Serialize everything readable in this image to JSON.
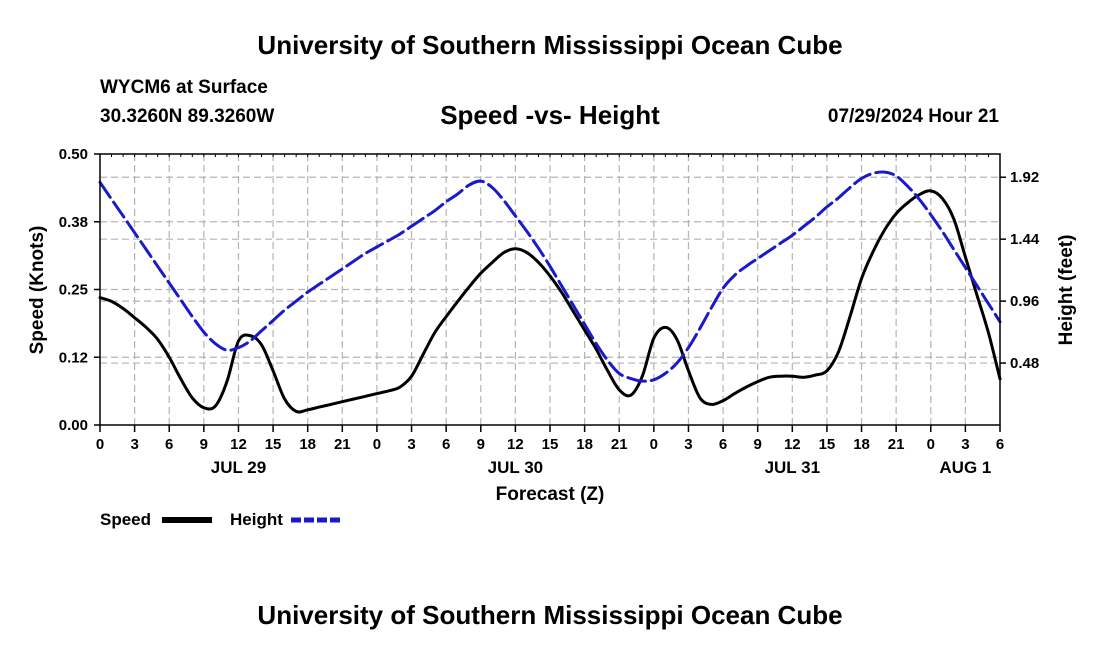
{
  "header": {
    "title": "University of Southern Mississippi Ocean Cube",
    "station": "WYCM6 at Surface",
    "coordinates": "30.3260N  89.3260W",
    "subtitle": "Speed -vs- Height",
    "datetime": "07/29/2024 Hour 21"
  },
  "footer": {
    "title": "University of Southern Mississippi Ocean Cube"
  },
  "colors": {
    "speed": "#000000",
    "height": "#1a1acc",
    "grid": "#b4b4b4"
  },
  "chart_data": {
    "type": "line",
    "xlabel": "Forecast (Z)",
    "ylabel_left": "Speed (Knots)",
    "ylabel_right": "Height (feet)",
    "x_range_hours": [
      0,
      78
    ],
    "ylim_left": [
      0,
      0.5
    ],
    "ylim_right": [
      0,
      2.1
    ],
    "x_tick_labels": [
      "0",
      "3",
      "6",
      "9",
      "12",
      "15",
      "18",
      "21",
      "0",
      "3",
      "6",
      "9",
      "12",
      "15",
      "18",
      "21",
      "0",
      "3",
      "6",
      "9",
      "12",
      "15",
      "18",
      "21",
      "0",
      "3",
      "6"
    ],
    "y_left_ticks": [
      {
        "value": 0.0,
        "label": "0.00"
      },
      {
        "value": 0.125,
        "label": "0.12"
      },
      {
        "value": 0.25,
        "label": "0.25"
      },
      {
        "value": 0.375,
        "label": "0.38"
      },
      {
        "value": 0.5,
        "label": "0.50"
      }
    ],
    "y_right_ticks": [
      {
        "value": 0.48,
        "label": "0.48"
      },
      {
        "value": 0.96,
        "label": "0.96"
      },
      {
        "value": 1.44,
        "label": "1.44"
      },
      {
        "value": 1.92,
        "label": "1.92"
      }
    ],
    "date_labels": [
      {
        "hour": 12,
        "label": "JUL 29"
      },
      {
        "hour": 36,
        "label": "JUL 30"
      },
      {
        "hour": 60,
        "label": "JUL 31"
      },
      {
        "hour": 75,
        "label": "AUG 1"
      }
    ],
    "legend": [
      "Speed",
      "Height"
    ],
    "series": [
      {
        "name": "Speed",
        "axis": "left",
        "style": "solid",
        "x": [
          0,
          1,
          2,
          3,
          4,
          5,
          6,
          7,
          8,
          9,
          10,
          11,
          12,
          13,
          14,
          15,
          16,
          17,
          18,
          19,
          20,
          21,
          22,
          23,
          24,
          25,
          26,
          27,
          28,
          29,
          30,
          31,
          32,
          33,
          34,
          35,
          36,
          37,
          38,
          39,
          40,
          41,
          42,
          43,
          44,
          45,
          46,
          47,
          48,
          49,
          50,
          51,
          52,
          53,
          54,
          55,
          56,
          57,
          58,
          59,
          60,
          61,
          62,
          63,
          64,
          65,
          66,
          67,
          68,
          69,
          70,
          71,
          72,
          73,
          74,
          75,
          76,
          77,
          78
        ],
        "values": [
          0.235,
          0.228,
          0.215,
          0.198,
          0.18,
          0.158,
          0.125,
          0.085,
          0.05,
          0.032,
          0.035,
          0.08,
          0.155,
          0.165,
          0.148,
          0.1,
          0.048,
          0.025,
          0.028,
          0.033,
          0.038,
          0.043,
          0.048,
          0.053,
          0.058,
          0.063,
          0.07,
          0.09,
          0.13,
          0.17,
          0.2,
          0.228,
          0.255,
          0.28,
          0.3,
          0.318,
          0.325,
          0.318,
          0.3,
          0.275,
          0.245,
          0.21,
          0.175,
          0.14,
          0.1,
          0.065,
          0.055,
          0.09,
          0.16,
          0.18,
          0.158,
          0.1,
          0.05,
          0.038,
          0.045,
          0.058,
          0.07,
          0.08,
          0.088,
          0.09,
          0.09,
          0.088,
          0.092,
          0.1,
          0.135,
          0.2,
          0.27,
          0.32,
          0.36,
          0.39,
          0.41,
          0.425,
          0.432,
          0.418,
          0.38,
          0.31,
          0.24,
          0.17,
          0.085
        ]
      },
      {
        "name": "Height",
        "axis": "right",
        "style": "dashed",
        "x": [
          0,
          1,
          2,
          3,
          4,
          5,
          6,
          7,
          8,
          9,
          10,
          11,
          12,
          13,
          14,
          15,
          16,
          17,
          18,
          19,
          20,
          21,
          22,
          23,
          24,
          25,
          26,
          27,
          28,
          29,
          30,
          31,
          32,
          33,
          34,
          35,
          36,
          37,
          38,
          39,
          40,
          41,
          42,
          43,
          44,
          45,
          46,
          47,
          48,
          49,
          50,
          51,
          52,
          53,
          54,
          55,
          56,
          57,
          58,
          59,
          60,
          61,
          62,
          63,
          64,
          65,
          66,
          67,
          68,
          69,
          70,
          71,
          72,
          73,
          74,
          75,
          76,
          77,
          78
        ],
        "values": [
          1.88,
          1.75,
          1.62,
          1.49,
          1.36,
          1.23,
          1.1,
          0.97,
          0.84,
          0.72,
          0.63,
          0.58,
          0.6,
          0.65,
          0.73,
          0.81,
          0.89,
          0.96,
          1.03,
          1.09,
          1.15,
          1.21,
          1.27,
          1.33,
          1.38,
          1.43,
          1.48,
          1.54,
          1.6,
          1.66,
          1.73,
          1.79,
          1.86,
          1.89,
          1.84,
          1.74,
          1.62,
          1.5,
          1.37,
          1.23,
          1.08,
          0.93,
          0.78,
          0.63,
          0.5,
          0.4,
          0.36,
          0.34,
          0.35,
          0.4,
          0.48,
          0.6,
          0.75,
          0.91,
          1.06,
          1.16,
          1.23,
          1.29,
          1.35,
          1.41,
          1.47,
          1.54,
          1.61,
          1.69,
          1.76,
          1.84,
          1.91,
          1.95,
          1.96,
          1.93,
          1.85,
          1.75,
          1.63,
          1.5,
          1.36,
          1.22,
          1.08,
          0.94,
          0.8
        ]
      }
    ]
  }
}
